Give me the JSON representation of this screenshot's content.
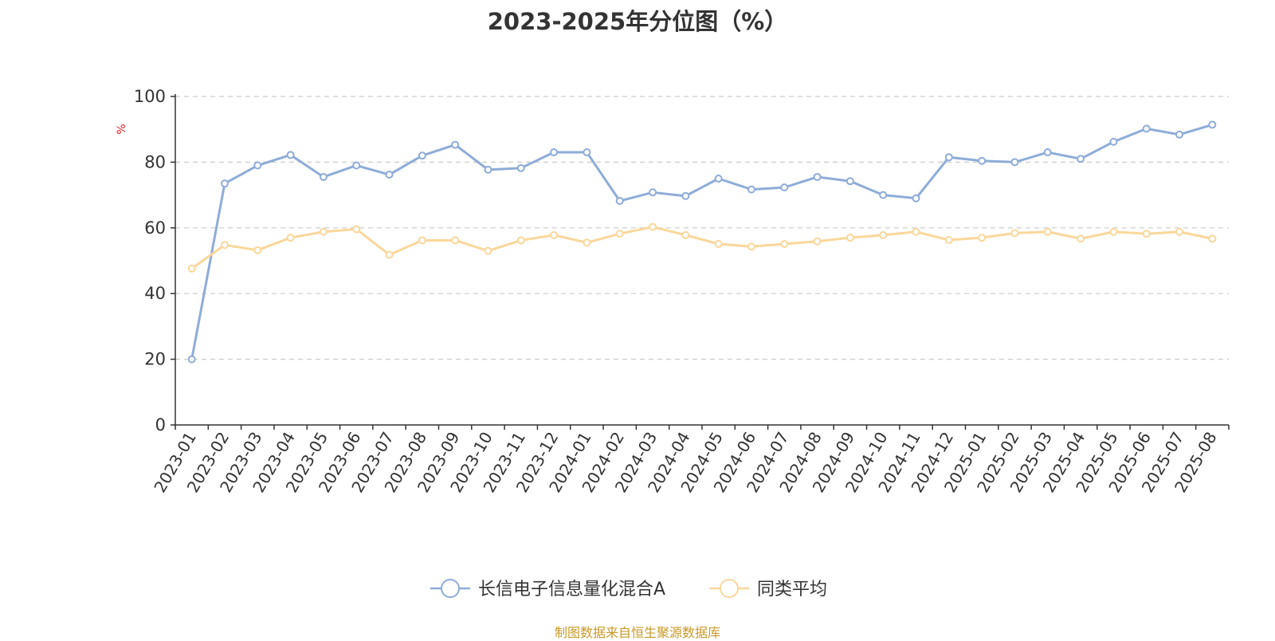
{
  "chart_data": {
    "type": "line",
    "title": "2023-2025年分位图（%）",
    "ylabel": "%",
    "xlabel": "",
    "ylim": [
      0,
      100
    ],
    "yticks": [
      0,
      20,
      40,
      60,
      80,
      100
    ],
    "grid": true,
    "legend_position": "bottom",
    "categories": [
      "2023-01",
      "2023-02",
      "2023-03",
      "2023-04",
      "2023-05",
      "2023-06",
      "2023-07",
      "2023-08",
      "2023-09",
      "2023-10",
      "2023-11",
      "2023-12",
      "2024-01",
      "2024-02",
      "2024-03",
      "2024-04",
      "2024-05",
      "2024-06",
      "2024-07",
      "2024-08",
      "2024-09",
      "2024-10",
      "2024-11",
      "2024-12",
      "2025-01",
      "2025-02",
      "2025-03",
      "2025-04",
      "2025-05",
      "2025-06",
      "2025-07",
      "2025-08"
    ],
    "series": [
      {
        "name": "长信电子信息量化混合A",
        "color": "#8eacd8",
        "values": [
          20,
          73.5,
          79,
          82.2,
          75.5,
          79,
          76.2,
          82,
          85.3,
          77.7,
          78.2,
          83,
          83,
          68.2,
          70.8,
          69.7,
          75,
          71.7,
          72.3,
          75.5,
          74.2,
          70,
          69,
          81.5,
          80.4,
          80,
          83,
          81,
          86.2,
          90.2,
          88.4,
          91.4
        ]
      },
      {
        "name": "同类平均",
        "color": "#fad79b",
        "values": [
          47.6,
          54.8,
          53.2,
          57,
          58.8,
          59.6,
          51.8,
          56.2,
          56.2,
          53,
          56.2,
          57.8,
          55.5,
          58.2,
          60.3,
          57.8,
          55.1,
          54.3,
          55.1,
          55.9,
          57,
          57.8,
          58.8,
          56.3,
          57,
          58.4,
          58.8,
          56.7,
          58.8,
          58.2,
          58.8,
          56.7
        ]
      }
    ]
  },
  "footer": {
    "source": "制图数据来自恒生聚源数据库"
  },
  "colors": {
    "axis": "#333333",
    "grid": "#cccccc",
    "ylabel": "#e02020",
    "source": "#c89a2a"
  }
}
